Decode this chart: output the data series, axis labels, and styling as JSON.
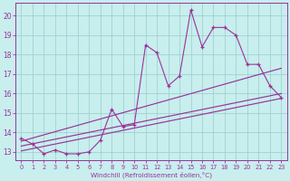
{
  "xlabel": "Windchill (Refroidissement éolien,°C)",
  "bg_color": "#c8eeee",
  "line_color": "#993399",
  "grid_color": "#99cccc",
  "xlim": [
    -0.5,
    23.5
  ],
  "ylim": [
    12.55,
    20.65
  ],
  "xticks": [
    0,
    1,
    2,
    3,
    4,
    5,
    6,
    7,
    8,
    9,
    10,
    11,
    12,
    13,
    14,
    15,
    16,
    17,
    18,
    19,
    20,
    21,
    22,
    23
  ],
  "yticks": [
    13,
    14,
    15,
    16,
    17,
    18,
    19,
    20
  ],
  "main_x": [
    0,
    1,
    2,
    3,
    4,
    5,
    6,
    7,
    8,
    9,
    10,
    11,
    12,
    13,
    14,
    15,
    16,
    17,
    18,
    19,
    20,
    21,
    22,
    23
  ],
  "main_y": [
    13.7,
    13.4,
    12.9,
    13.1,
    12.9,
    12.9,
    13.0,
    13.6,
    15.2,
    14.3,
    14.4,
    18.5,
    18.1,
    16.4,
    16.9,
    20.3,
    18.4,
    19.4,
    19.4,
    19.0,
    17.5,
    17.5,
    16.4,
    15.8
  ],
  "trend1_x": [
    0,
    23
  ],
  "trend1_y": [
    13.55,
    17.3
  ],
  "trend2_x": [
    0,
    23
  ],
  "trend2_y": [
    13.3,
    16.0
  ],
  "trend3_x": [
    0,
    23
  ],
  "trend3_y": [
    13.05,
    15.75
  ]
}
